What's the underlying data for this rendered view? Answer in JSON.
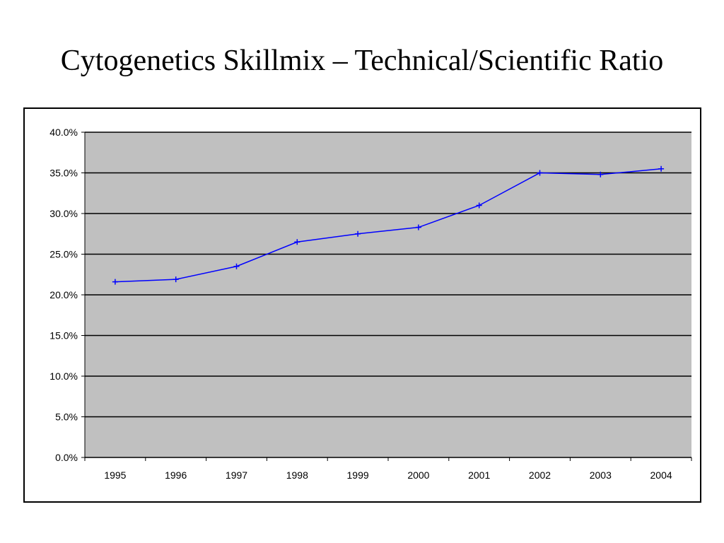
{
  "slide": {
    "title": "Cytogenetics Skillmix – Technical/Scientific Ratio"
  },
  "colors": {
    "plot_background": "#c0c0c0",
    "gridline": "#000000",
    "series": "#0000ff",
    "frame": "#000000"
  },
  "chart_data": {
    "type": "line",
    "title": "",
    "xlabel": "",
    "ylabel": "",
    "categories": [
      "1995",
      "1996",
      "1997",
      "1998",
      "1999",
      "2000",
      "2001",
      "2002",
      "2003",
      "2004"
    ],
    "series": [
      {
        "values": [
          21.6,
          21.9,
          23.5,
          26.5,
          27.5,
          28.3,
          31.0,
          35.0,
          34.8,
          35.5
        ],
        "marker": "plus"
      }
    ],
    "ylim": [
      0,
      40
    ],
    "yticks": [
      0,
      5,
      10,
      15,
      20,
      25,
      30,
      35,
      40
    ],
    "ytick_labels": [
      "0.0%",
      "5.0%",
      "10.0%",
      "15.0%",
      "20.0%",
      "25.0%",
      "30.0%",
      "35.0%",
      "40.0%"
    ],
    "grid": "horizontal",
    "legend": "none"
  }
}
